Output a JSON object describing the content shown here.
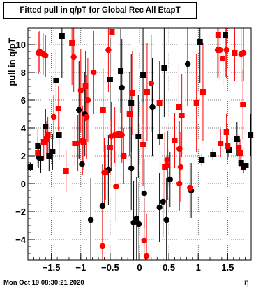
{
  "title": "Fitted pull in q/pT for Global Rec All EtapT",
  "timestamp": "Mon Oct 19 08:30:21 2020",
  "chart_data": {
    "type": "scatter",
    "title": "Fitted pull in q/pT for Global Rec All EtapT",
    "xlabel": "η",
    "ylabel": "pull in q/pT",
    "xlim": [
      -1.9,
      1.9
    ],
    "ylim": [
      -5.5,
      11.2
    ],
    "grid": true,
    "xticks": [
      -1.5,
      -1,
      -0.5,
      0,
      0.5,
      1,
      1.5
    ],
    "xtick_labels": [
      "−1.5",
      "−1",
      "−0.5",
      "0",
      "0.5",
      "1",
      "1.5"
    ],
    "yticks": [
      -4,
      -2,
      0,
      2,
      4,
      6,
      8,
      10
    ],
    "ytick_labels": [
      "−4",
      "−2",
      "0",
      "2",
      "4",
      "6",
      "8",
      "10"
    ],
    "series": [
      {
        "marker": "square",
        "color": "#000000",
        "points": [
          {
            "x": -1.86,
            "y": 1.2,
            "err": 0.3
          },
          {
            "x": -1.73,
            "y": 2.7,
            "err": 1.2
          },
          {
            "x": -1.68,
            "y": 1.8,
            "err": 1.0
          },
          {
            "x": -1.6,
            "y": 4.1,
            "err": 1.3
          },
          {
            "x": -1.54,
            "y": 2.0,
            "err": 1.1
          },
          {
            "x": -1.48,
            "y": 2.3,
            "err": 1.3
          },
          {
            "x": -1.42,
            "y": 7.4,
            "err": 2.2
          },
          {
            "x": -1.37,
            "y": 3.5,
            "err": 1.8
          },
          {
            "x": -1.32,
            "y": 10.6,
            "err": 3.0
          },
          {
            "x": -0.5,
            "y": 7.5,
            "err": 3.0
          },
          {
            "x": -0.32,
            "y": 8.1,
            "err": 3.0
          },
          {
            "x": -0.14,
            "y": 5.8,
            "err": 3.5
          },
          {
            "x": -0.02,
            "y": 3.4,
            "err": 3.0
          },
          {
            "x": 0.06,
            "y": 7.8,
            "err": 3.5
          },
          {
            "x": 0.35,
            "y": 3.4,
            "err": 2.5
          },
          {
            "x": 0.42,
            "y": 8.3,
            "err": 3.5
          },
          {
            "x": 1.03,
            "y": 10.2,
            "err": 3.0
          },
          {
            "x": 1.06,
            "y": 1.7,
            "err": 0.4
          },
          {
            "x": 1.25,
            "y": 2.1,
            "err": 0.4
          },
          {
            "x": 1.46,
            "y": 10.7,
            "err": 3.0
          },
          {
            "x": 1.52,
            "y": 2.4,
            "err": 0.5
          },
          {
            "x": 1.66,
            "y": 3.2,
            "err": 1.2
          },
          {
            "x": 1.73,
            "y": 1.5,
            "err": 0.5
          },
          {
            "x": 1.77,
            "y": 1.2,
            "err": 0.4
          },
          {
            "x": 1.81,
            "y": 1.3,
            "err": 0.4
          },
          {
            "x": 1.89,
            "y": 3.5,
            "err": 1.5
          }
        ]
      },
      {
        "marker": "circle",
        "color": "#000000",
        "points": [
          {
            "x": -1.72,
            "y": 1.9,
            "err": 0.8
          },
          {
            "x": -1.03,
            "y": 5.3,
            "err": 3.5
          },
          {
            "x": -0.98,
            "y": 1.4,
            "err": 2.5
          },
          {
            "x": -0.93,
            "y": 5.0,
            "err": 3.0
          },
          {
            "x": -0.83,
            "y": -2.6,
            "err": 3.0
          },
          {
            "x": -0.63,
            "y": -1.6,
            "err": 3.0
          },
          {
            "x": -0.53,
            "y": 1.0,
            "err": 2.5
          },
          {
            "x": -0.3,
            "y": 6.9,
            "err": 3.5
          },
          {
            "x": -0.14,
            "y": 1.1,
            "err": 3.0
          },
          {
            "x": -0.1,
            "y": -2.8,
            "err": 3.0
          },
          {
            "x": -0.05,
            "y": -2.5,
            "err": 3.0
          },
          {
            "x": -0.01,
            "y": -2.9,
            "err": 3.0
          },
          {
            "x": 0.08,
            "y": -0.7,
            "err": 2.5
          },
          {
            "x": 0.22,
            "y": 5.5,
            "err": 3.5
          },
          {
            "x": 0.34,
            "y": -1.7,
            "err": 2.5
          },
          {
            "x": 0.4,
            "y": -1.3,
            "err": 2.5
          },
          {
            "x": 0.46,
            "y": -2.6,
            "err": 3.0
          },
          {
            "x": 0.52,
            "y": 0.3,
            "err": 2.0
          },
          {
            "x": 0.82,
            "y": 8.6,
            "err": 3.0
          },
          {
            "x": 0.88,
            "y": -0.5,
            "err": 2.0
          }
        ]
      },
      {
        "marker": "square",
        "color": "#ff0000",
        "points": [
          {
            "x": -1.73,
            "y": 2.2,
            "err": 1.0
          },
          {
            "x": -1.63,
            "y": 3.0,
            "err": 1.3
          },
          {
            "x": -1.58,
            "y": 3.2,
            "err": 1.3
          },
          {
            "x": -1.56,
            "y": 3.5,
            "err": 1.3
          },
          {
            "x": -1.38,
            "y": 5.4,
            "err": 1.6
          },
          {
            "x": -1.25,
            "y": 0.9,
            "err": 1.5
          },
          {
            "x": -1.15,
            "y": 10.1,
            "err": 3.0
          },
          {
            "x": -1.1,
            "y": 2.9,
            "err": 1.5
          },
          {
            "x": -0.95,
            "y": 3.0,
            "err": 2.0
          },
          {
            "x": -0.92,
            "y": 7.0,
            "err": 2.5
          },
          {
            "x": -0.62,
            "y": 5.3,
            "err": 3.0
          },
          {
            "x": -0.58,
            "y": 0.8,
            "err": 2.0
          },
          {
            "x": -0.5,
            "y": 2.6,
            "err": 2.0
          },
          {
            "x": -0.47,
            "y": 10.9,
            "err": 3.0
          },
          {
            "x": -0.35,
            "y": 3.5,
            "err": 2.0
          },
          {
            "x": -0.27,
            "y": 2.0,
            "err": 2.0
          },
          {
            "x": -0.17,
            "y": 5.0,
            "err": 3.0
          },
          {
            "x": -0.12,
            "y": 6.5,
            "err": 3.0
          },
          {
            "x": 0.06,
            "y": 2.8,
            "err": 3.0
          },
          {
            "x": 0.13,
            "y": 6.6,
            "err": 3.5
          },
          {
            "x": 0.34,
            "y": 5.8,
            "err": 3.0
          },
          {
            "x": 0.43,
            "y": 1.2,
            "err": 2.5
          },
          {
            "x": 0.48,
            "y": 1.3,
            "err": 2.5
          },
          {
            "x": 0.6,
            "y": 3.1,
            "err": 2.0
          },
          {
            "x": 0.67,
            "y": 5.5,
            "err": 3.0
          },
          {
            "x": 0.72,
            "y": 4.9,
            "err": 3.0
          },
          {
            "x": 0.97,
            "y": 5.8,
            "err": 3.5
          },
          {
            "x": 1.08,
            "y": 6.6,
            "err": 3.5
          },
          {
            "x": 1.34,
            "y": 10.7,
            "err": 3.0
          },
          {
            "x": 1.38,
            "y": 2.9,
            "err": 1.0
          },
          {
            "x": 1.48,
            "y": 3.7,
            "err": 1.3
          },
          {
            "x": 1.5,
            "y": 2.7,
            "err": 1.0
          },
          {
            "x": 1.62,
            "y": 9.4,
            "err": 2.0
          },
          {
            "x": 1.69,
            "y": 2.6,
            "err": 1.0
          },
          {
            "x": 1.71,
            "y": 2.2,
            "err": 1.0
          },
          {
            "x": 1.76,
            "y": 5.7,
            "err": 2.5
          }
        ]
      },
      {
        "marker": "circle",
        "color": "#ff0000",
        "points": [
          {
            "x": -1.72,
            "y": 9.4,
            "err": 1.5
          },
          {
            "x": -1.7,
            "y": 9.5,
            "err": 1.5
          },
          {
            "x": -1.64,
            "y": 9.3,
            "err": 1.5
          },
          {
            "x": -1.6,
            "y": 9.2,
            "err": 1.5
          },
          {
            "x": -1.46,
            "y": 4.8,
            "err": 1.6
          },
          {
            "x": -1.12,
            "y": 9.1,
            "err": 2.5
          },
          {
            "x": -1.05,
            "y": 2.9,
            "err": 2.0
          },
          {
            "x": -1.0,
            "y": 6.7,
            "err": 3.0
          },
          {
            "x": -0.97,
            "y": 3.1,
            "err": 2.5
          },
          {
            "x": -0.9,
            "y": 4.8,
            "err": 3.0
          },
          {
            "x": -0.88,
            "y": 6.0,
            "err": 3.0
          },
          {
            "x": -0.78,
            "y": 8.0,
            "err": 3.0
          },
          {
            "x": -0.63,
            "y": -4.5,
            "err": 3.0
          },
          {
            "x": -0.6,
            "y": 0.8,
            "err": 2.5
          },
          {
            "x": -0.53,
            "y": 9.6,
            "err": 3.0
          },
          {
            "x": -0.48,
            "y": 3.4,
            "err": 2.5
          },
          {
            "x": -0.42,
            "y": 3.5,
            "err": 2.0
          },
          {
            "x": -0.4,
            "y": -0.2,
            "err": 2.5
          },
          {
            "x": -0.35,
            "y": 3.6,
            "err": 2.0
          },
          {
            "x": -0.3,
            "y": 3.5,
            "err": 2.0
          },
          {
            "x": 0.08,
            "y": -4.1,
            "err": 3.0
          },
          {
            "x": 0.12,
            "y": -5.2,
            "err": 3.0
          },
          {
            "x": 0.2,
            "y": 7.2,
            "err": 3.5
          },
          {
            "x": 0.47,
            "y": 1.7,
            "err": 2.0
          },
          {
            "x": 0.68,
            "y": 2.5,
            "err": 2.0
          },
          {
            "x": 0.7,
            "y": 1.2,
            "err": 2.5
          },
          {
            "x": 0.68,
            "y": 0.0,
            "err": 2.0
          },
          {
            "x": 0.86,
            "y": -0.3,
            "err": 2.0
          },
          {
            "x": 1.33,
            "y": 9.6,
            "err": 2.0
          },
          {
            "x": 1.37,
            "y": 9.6,
            "err": 2.0
          },
          {
            "x": 1.42,
            "y": 9.0,
            "err": 2.0
          },
          {
            "x": 1.48,
            "y": 9.6,
            "err": 2.0
          },
          {
            "x": 1.73,
            "y": 9.3,
            "err": 2.0
          },
          {
            "x": 1.77,
            "y": 9.4,
            "err": 2.0
          }
        ]
      }
    ]
  }
}
